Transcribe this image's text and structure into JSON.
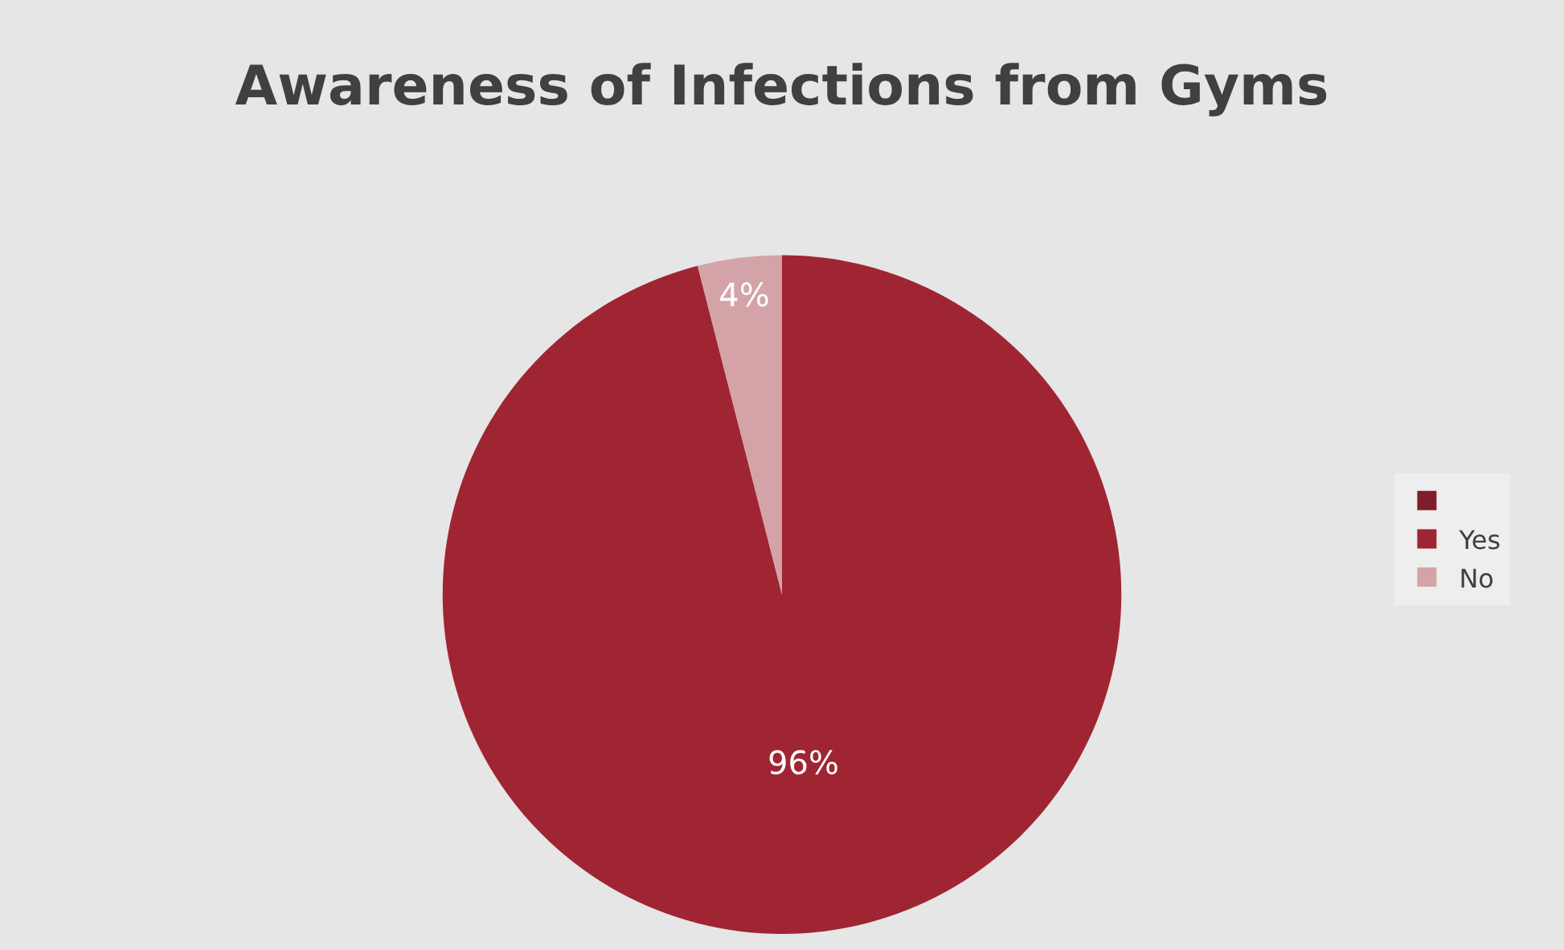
{
  "chart_data": {
    "type": "pie",
    "title": "Awareness of Infections from Gyms",
    "categories": [
      null,
      "Yes",
      "No"
    ],
    "values": [
      0,
      96,
      4
    ],
    "colors": [
      "#7f1d2a",
      "#a02533",
      "#d4a3a8"
    ],
    "value_labels": [
      null,
      "96%",
      "4%"
    ],
    "legend": "right"
  }
}
